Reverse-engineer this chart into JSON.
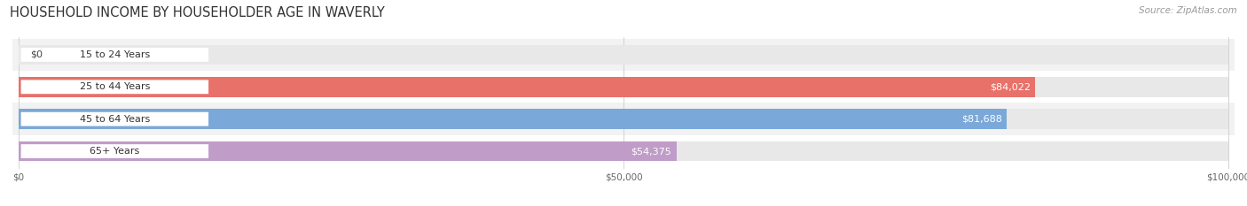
{
  "title": "HOUSEHOLD INCOME BY HOUSEHOLDER AGE IN WAVERLY",
  "source": "Source: ZipAtlas.com",
  "categories": [
    "15 to 24 Years",
    "25 to 44 Years",
    "45 to 64 Years",
    "65+ Years"
  ],
  "values": [
    0,
    84022,
    81688,
    54375
  ],
  "labels": [
    "$0",
    "$84,022",
    "$81,688",
    "$54,375"
  ],
  "bar_colors": [
    "#f5c89a",
    "#e8716a",
    "#7aa8d8",
    "#c09cc8"
  ],
  "bar_bg_color": "#e8e8e8",
  "row_bg_colors": [
    "#f2f2f2",
    "#ffffff",
    "#f2f2f2",
    "#ffffff"
  ],
  "xlim": [
    0,
    100000
  ],
  "xticks": [
    0,
    50000,
    100000
  ],
  "xtick_labels": [
    "$0",
    "$50,000",
    "$100,000"
  ],
  "background_color": "#ffffff",
  "title_fontsize": 10.5,
  "source_fontsize": 7.5,
  "label_fontsize": 8,
  "bar_height": 0.62,
  "figsize": [
    14.06,
    2.33
  ],
  "dpi": 100
}
